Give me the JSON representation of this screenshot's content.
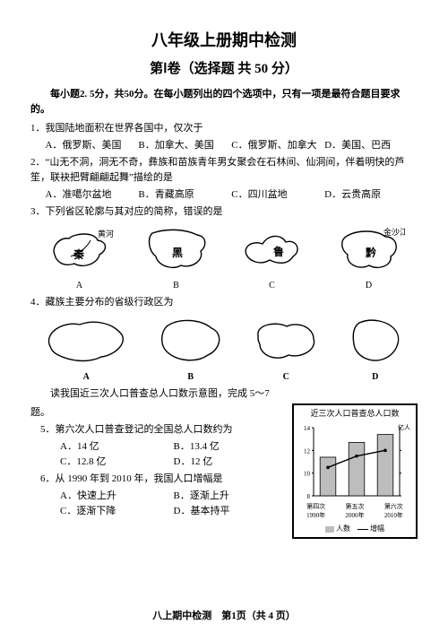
{
  "header": {
    "title": "八年级上册期中检测",
    "subtitle": "第Ⅰ卷（选择题 共 50 分）"
  },
  "instruction": "每小题2. 5分，共50分。在每小题列出的四个选项中，只有一项是最符合题目要求的。",
  "questions": [
    {
      "n": "1．",
      "text": "我国陆地面积在世界各国中，仅次于",
      "opts": [
        "A．俄罗斯、美国",
        "B．加拿大、美国",
        "C．俄罗斯、加拿大",
        "D．美国、巴西"
      ]
    },
    {
      "n": "2．",
      "text": "“山无不洞，洞无不奇，彝族和苗族青年男女聚会在石林间、仙洞间，伴着明快的芦笙，联袂把臂翩翩起舞”描绘的是",
      "opts": [
        "A．准噶尔盆地",
        "B．青藏高原",
        "C．四川盆地",
        "D．云贵高原"
      ]
    },
    {
      "n": "3．",
      "text": "下列省区轮廓与其对应的简称，错误的是"
    },
    {
      "n": "4．",
      "text": "藏族主要分布的省级行政区为"
    }
  ],
  "q3_labels": {
    "inner": [
      "秦",
      "黑",
      "鲁",
      "黔"
    ],
    "outer": [
      "A",
      "B",
      "C",
      "D"
    ],
    "extra_a": "黄河",
    "extra_d": "金沙江"
  },
  "q4_labels": [
    "A",
    "B",
    "C",
    "D"
  ],
  "chart_intro": "读我国近三次人口普查总人口数示意图，完成 5～7",
  "chart_intro_cont": "题。",
  "q5": {
    "n": "5．",
    "text": "第六次人口普查登记的全国总人口数约为",
    "opts": [
      "A．14 亿",
      "B．13.4 亿",
      "C．12.8 亿",
      "D．12 亿"
    ]
  },
  "q6": {
    "n": "6．",
    "text": "从 1990 年到 2010 年，我国人口增幅是",
    "opts": [
      "A．快速上升",
      "B．逐渐上升",
      "C．逐渐下降",
      "D．基本持平"
    ]
  },
  "chart": {
    "title": "近三次人口普查总人口数",
    "y_unit": "亿人",
    "y_max": 14,
    "ticks": [
      8,
      10,
      12,
      14
    ],
    "bar_values": [
      11.4,
      12.7,
      13.4
    ],
    "x_labels": [
      {
        "a": "第四次",
        "b": "1990年"
      },
      {
        "a": "第五次",
        "b": "2000年"
      },
      {
        "a": "第六次",
        "b": "2010年"
      }
    ],
    "legend": {
      "bars": "人数",
      "line": "增幅"
    },
    "bar_color": "#bdbdbd",
    "grid_color": "#000000",
    "bg": "#ffffff"
  },
  "footer": "八上期中检测　第1页（共 4 页）"
}
